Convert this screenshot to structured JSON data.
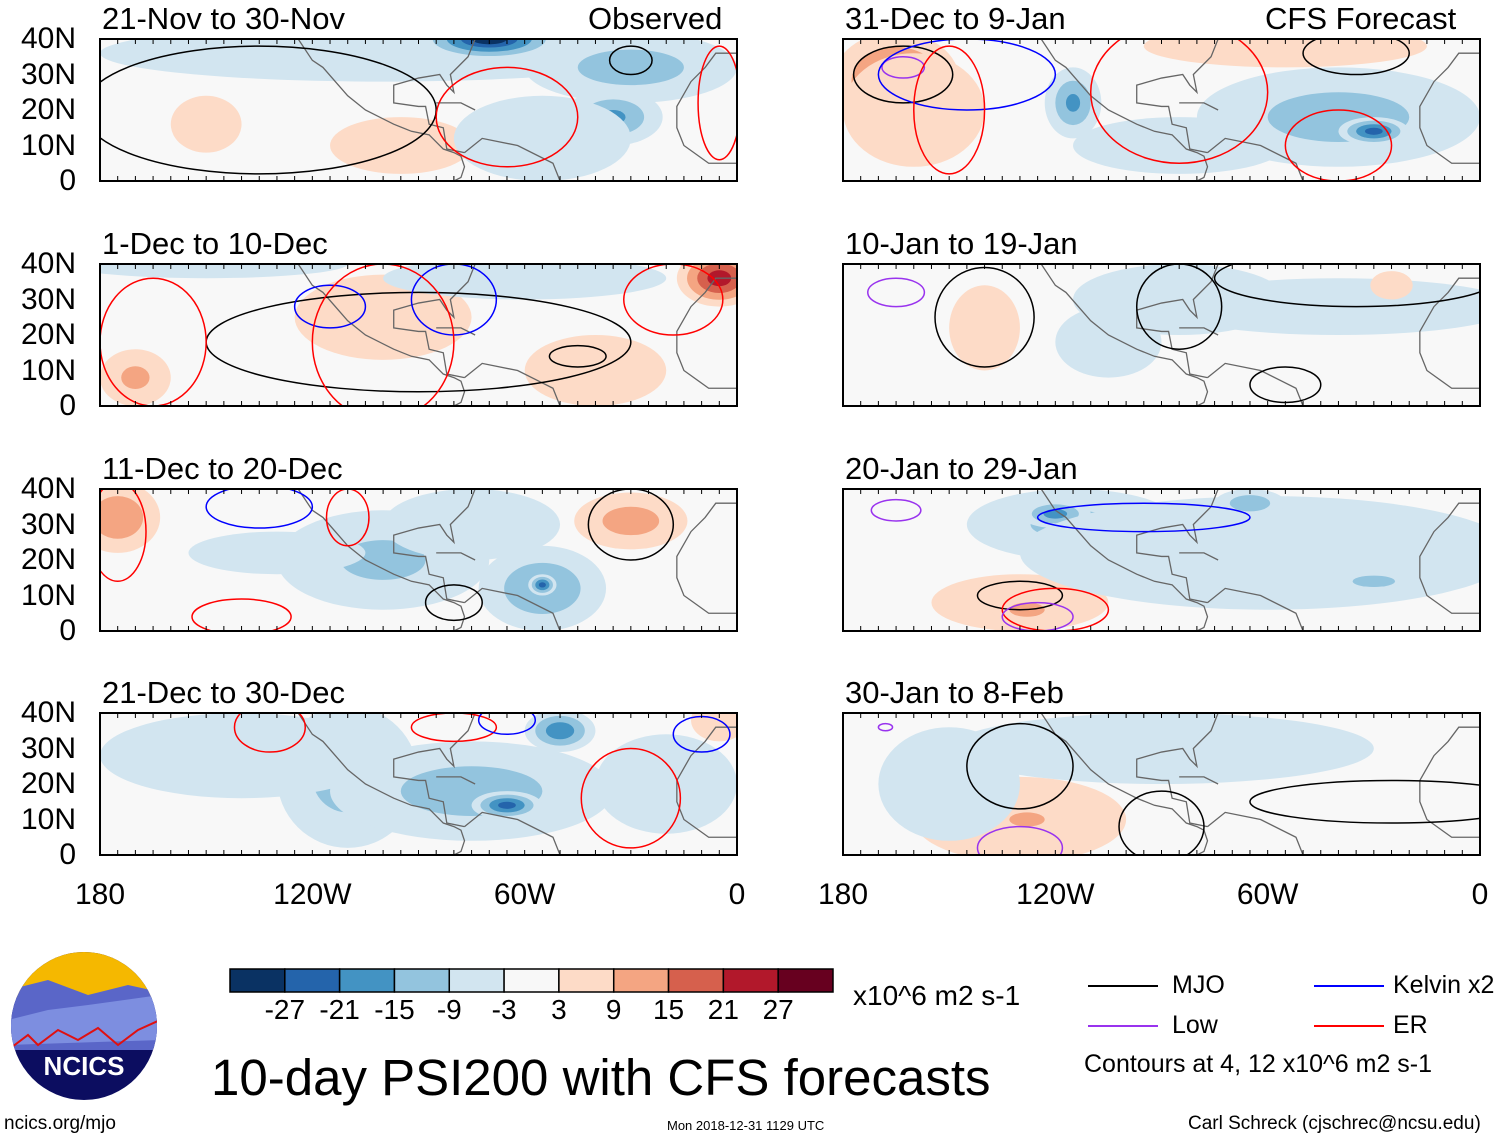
{
  "title": "10-day PSI200 with CFS forecasts",
  "units": "x10^6 m2 s-1",
  "left_header": "Observed",
  "right_header": "CFS Forecast",
  "y_ticks": [
    "40N",
    "30N",
    "20N",
    "10N",
    "0"
  ],
  "x_ticks": [
    "180",
    "120W",
    "60W",
    "0"
  ],
  "colorbar": {
    "levels": [
      "-27",
      "-21",
      "-15",
      "-9",
      "-3",
      "3",
      "9",
      "15",
      "21",
      "27"
    ],
    "colors": [
      "#0a3263",
      "#2464ab",
      "#4393c3",
      "#93c4de",
      "#d2e5f0",
      "#f8f8f8",
      "#fddbc7",
      "#f4a582",
      "#d6604d",
      "#b2182b",
      "#67001f"
    ]
  },
  "legend": {
    "mjo": "MJO",
    "low": "Low",
    "kelvin": "Kelvin x2",
    "er": "ER",
    "note": "Contours at 4, 12 x10^6 m2 s-1",
    "colors": {
      "mjo": "#000000",
      "low": "#9933ee",
      "kelvin": "#0000ff",
      "er": "#ff0000"
    }
  },
  "footer": {
    "url": "ncics.org/mjo",
    "timestamp": "Mon 2018-12-31 1129 UTC",
    "author": "Carl Schreck (cjschrec@ncsu.edu)",
    "logo_text": "NCICS"
  },
  "panels": [
    {
      "title": "21-Nov to 30-Nov",
      "col": 0,
      "row": 0,
      "blobs": [
        [
          -100,
          36,
          80,
          8,
          -9
        ],
        [
          -70,
          40,
          20,
          6,
          -30
        ],
        [
          -30,
          32,
          30,
          10,
          -12
        ],
        [
          -35,
          18,
          14,
          8,
          -16
        ],
        [
          -150,
          16,
          10,
          8,
          5
        ],
        [
          -95,
          10,
          20,
          8,
          6
        ],
        [
          -55,
          12,
          25,
          12,
          -6
        ]
      ],
      "contours": [
        [
          "mjo",
          -30,
          34,
          6,
          4
        ],
        [
          "mjo",
          -135,
          20,
          50,
          18
        ],
        [
          "er",
          -65,
          18,
          20,
          14
        ],
        [
          "er",
          -5,
          22,
          6,
          16
        ]
      ]
    },
    {
      "title": "1-Dec to 10-Dec",
      "col": 0,
      "row": 1,
      "blobs": [
        [
          -5,
          36,
          12,
          8,
          25
        ],
        [
          -170,
          8,
          10,
          8,
          10
        ],
        [
          -100,
          25,
          25,
          12,
          5
        ],
        [
          -60,
          36,
          40,
          6,
          -6
        ],
        [
          -40,
          10,
          20,
          10,
          5
        ],
        [
          -150,
          40,
          40,
          4,
          -6
        ]
      ],
      "contours": [
        [
          "mjo",
          -90,
          18,
          60,
          14
        ],
        [
          "mjo",
          -45,
          14,
          8,
          3
        ],
        [
          "kelvin",
          -115,
          28,
          10,
          6
        ],
        [
          "kelvin",
          -80,
          30,
          12,
          10
        ],
        [
          "er",
          -165,
          18,
          15,
          18
        ],
        [
          "er",
          -100,
          18,
          20,
          22
        ],
        [
          "er",
          -18,
          30,
          14,
          10
        ]
      ]
    },
    {
      "title": "11-Dec to 20-Dec",
      "col": 0,
      "row": 2,
      "blobs": [
        [
          -175,
          32,
          12,
          10,
          15
        ],
        [
          -30,
          31,
          16,
          8,
          12
        ],
        [
          -55,
          12,
          18,
          12,
          -15
        ],
        [
          -55,
          13,
          4,
          3,
          -24
        ],
        [
          -100,
          20,
          30,
          14,
          -10
        ],
        [
          -130,
          22,
          25,
          6,
          -5
        ],
        [
          -75,
          30,
          25,
          10,
          -9
        ]
      ],
      "contours": [
        [
          "mjo",
          -30,
          30,
          12,
          10
        ],
        [
          "mjo",
          -80,
          8,
          8,
          5
        ],
        [
          "kelvin",
          -135,
          35,
          15,
          6
        ],
        [
          "er",
          -175,
          28,
          8,
          14
        ],
        [
          "er",
          -140,
          4,
          14,
          5
        ],
        [
          "er",
          -110,
          32,
          6,
          8
        ]
      ]
    },
    {
      "title": "21-Dec to 30-Dec",
      "col": 0,
      "row": 3,
      "blobs": [
        [
          -110,
          22,
          20,
          20,
          -12
        ],
        [
          -75,
          18,
          40,
          14,
          -12
        ],
        [
          -65,
          14,
          10,
          4,
          -24
        ],
        [
          -50,
          35,
          10,
          6,
          -20
        ],
        [
          -140,
          28,
          40,
          12,
          -8
        ],
        [
          -20,
          20,
          20,
          14,
          -6
        ],
        [
          -150,
          14,
          10,
          6,
          -3
        ],
        [
          -5,
          38,
          8,
          6,
          6
        ]
      ],
      "contours": [
        [
          "er",
          -132,
          36,
          10,
          7
        ],
        [
          "er",
          -80,
          36,
          12,
          4
        ],
        [
          "kelvin",
          -65,
          38,
          8,
          4
        ],
        [
          "er",
          -30,
          16,
          14,
          14
        ],
        [
          "kelvin",
          -10,
          34,
          8,
          5
        ]
      ]
    },
    {
      "title": "31-Dec to 9-Jan",
      "col": 1,
      "row": 0,
      "blobs": [
        [
          -165,
          27,
          14,
          10,
          30
        ],
        [
          -165,
          28,
          18,
          14,
          20
        ],
        [
          -160,
          20,
          20,
          16,
          6
        ],
        [
          -115,
          22,
          8,
          10,
          -16
        ],
        [
          -40,
          18,
          40,
          14,
          -12
        ],
        [
          -30,
          14,
          10,
          4,
          -24
        ],
        [
          -85,
          10,
          30,
          8,
          -9
        ],
        [
          -55,
          38,
          40,
          6,
          6
        ]
      ],
      "contours": [
        [
          "low",
          -163,
          32,
          6,
          3
        ],
        [
          "mjo",
          -163,
          30,
          14,
          8
        ],
        [
          "kelvin",
          -145,
          30,
          25,
          10
        ],
        [
          "er",
          -150,
          20,
          10,
          18
        ],
        [
          "er",
          -85,
          25,
          25,
          20
        ],
        [
          "er",
          -40,
          10,
          15,
          10
        ],
        [
          "mjo",
          -35,
          36,
          15,
          6
        ]
      ]
    },
    {
      "title": "10-Jan to 19-Jan",
      "col": 1,
      "row": 1,
      "blobs": [
        [
          -140,
          22,
          10,
          12,
          5
        ],
        [
          -85,
          30,
          30,
          10,
          -8
        ],
        [
          -40,
          28,
          50,
          8,
          -6
        ],
        [
          -105,
          18,
          15,
          10,
          -5
        ],
        [
          -25,
          34,
          6,
          4,
          5
        ]
      ],
      "contours": [
        [
          "low",
          -165,
          32,
          8,
          4
        ],
        [
          "mjo",
          -140,
          25,
          14,
          14
        ],
        [
          "mjo",
          -85,
          28,
          12,
          12
        ],
        [
          "mjo",
          -55,
          6,
          10,
          5
        ],
        [
          "mjo",
          -35,
          36,
          40,
          8
        ]
      ]
    },
    {
      "title": "20-Jan to 29-Jan",
      "col": 1,
      "row": 2,
      "blobs": [
        [
          -115,
          30,
          30,
          10,
          -10
        ],
        [
          -120,
          33,
          10,
          4,
          -18
        ],
        [
          -130,
          8,
          25,
          8,
          6
        ],
        [
          -128,
          6,
          10,
          4,
          12
        ],
        [
          -60,
          22,
          70,
          16,
          -7
        ],
        [
          -65,
          36,
          10,
          4,
          -14
        ],
        [
          -30,
          14,
          15,
          4,
          -10
        ]
      ],
      "contours": [
        [
          "low",
          -165,
          34,
          7,
          3
        ],
        [
          "kelvin",
          -95,
          32,
          30,
          4
        ],
        [
          "mjo",
          -130,
          10,
          12,
          4
        ],
        [
          "er",
          -120,
          6,
          15,
          6
        ],
        [
          "low",
          -125,
          4,
          10,
          4
        ]
      ]
    },
    {
      "title": "30-Jan to 8-Feb",
      "col": 1,
      "row": 3,
      "blobs": [
        [
          -130,
          10,
          30,
          12,
          6
        ],
        [
          -128,
          10,
          10,
          4,
          12
        ],
        [
          -90,
          30,
          60,
          10,
          -7
        ],
        [
          -150,
          20,
          20,
          16,
          -4
        ],
        [
          -30,
          20,
          20,
          14,
          -3
        ]
      ],
      "contours": [
        [
          "mjo",
          -130,
          25,
          15,
          12
        ],
        [
          "mjo",
          -90,
          8,
          12,
          10
        ],
        [
          "mjo",
          -25,
          15,
          40,
          6
        ],
        [
          "low",
          -168,
          36,
          2,
          1
        ],
        [
          "low",
          -130,
          2,
          12,
          6
        ]
      ]
    }
  ]
}
